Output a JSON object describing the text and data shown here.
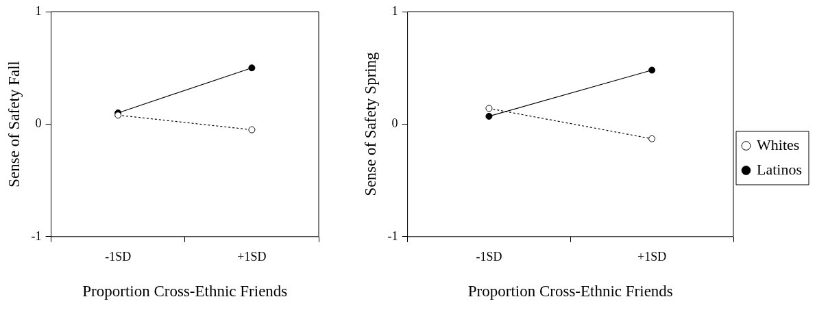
{
  "chart_data": [
    {
      "type": "line",
      "categories": [
        "-1SD",
        "+1SD"
      ],
      "xlabel": "Proportion Cross-Ethnic Friends",
      "ylabel": "Sense of Safety Fall",
      "ylim": [
        -1,
        1
      ],
      "yticks": [
        -1,
        0,
        1
      ],
      "grid": false,
      "legend": false,
      "marker": "circle",
      "series": [
        {
          "color": "#000000",
          "values": [
            0.08,
            -0.05
          ],
          "line_style": "dotted"
        },
        {
          "color": "#000000",
          "values": [
            0.1,
            0.5
          ],
          "line_style": "solid"
        }
      ]
    },
    {
      "type": "line",
      "categories": [
        "-1SD",
        "+1SD"
      ],
      "xlabel": "Proportion Cross-Ethnic Friends",
      "ylabel": "Sense of Safety Spring",
      "ylim": [
        -1,
        1
      ],
      "yticks": [
        -1,
        0,
        1
      ],
      "grid": false,
      "legend": "right",
      "marker": "circle",
      "series": [
        {
          "name": "Whites",
          "color": "#000000",
          "values": [
            0.14,
            -0.13
          ],
          "line_style": "dotted"
        },
        {
          "name": "Latinos",
          "color": "#000000",
          "values": [
            0.07,
            0.48
          ],
          "line_style": "solid"
        }
      ]
    }
  ]
}
